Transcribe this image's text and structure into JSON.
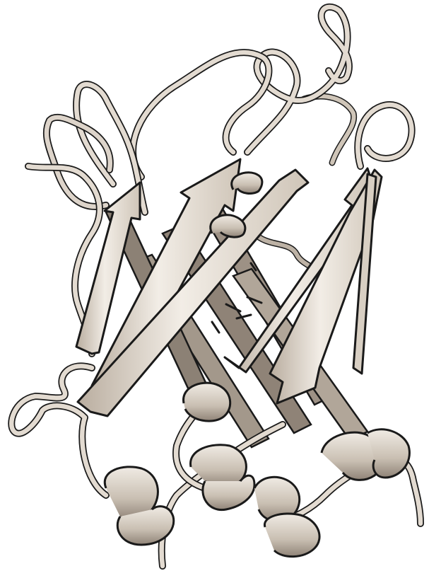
{
  "image": {
    "subject": "protein-ribbon-cartoon",
    "palette": {
      "background": "#ffffff",
      "ribbon": "#e8e1d8",
      "ribbon_mid": "#cfc5b8",
      "ribbon_shade": "#9d9185",
      "outline": "#1a1a1a"
    }
  }
}
